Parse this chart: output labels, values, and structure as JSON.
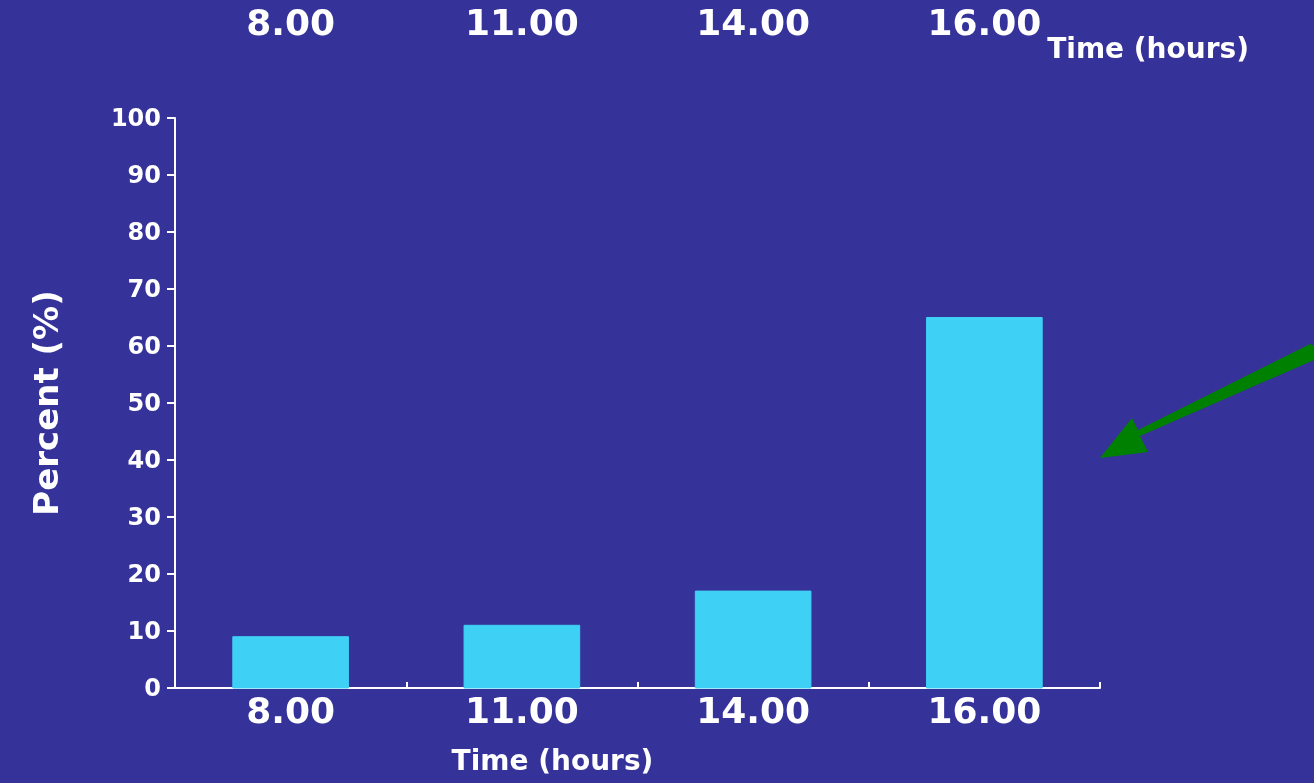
{
  "chart_data": {
    "type": "bar",
    "xlabel": "Time (hours)",
    "x2label": "Time (hours)",
    "ylabel": "Percent (%)",
    "categories": [
      "8.00",
      "11.00",
      "14.00",
      "16.00"
    ],
    "values": [
      9,
      11,
      17,
      65
    ],
    "color": "#3fd0f5",
    "ylim": [
      0,
      100
    ],
    "yticks": [
      0,
      10,
      20,
      30,
      40,
      50,
      60,
      70,
      80,
      90,
      100
    ],
    "grid": false
  }
}
